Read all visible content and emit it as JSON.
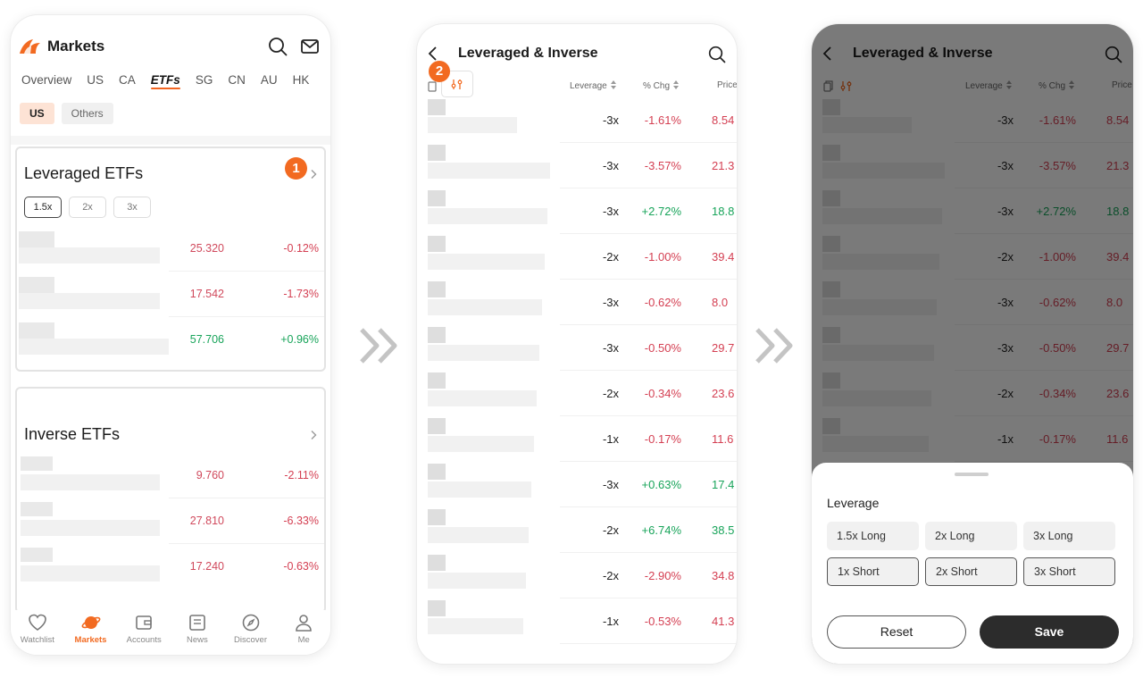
{
  "markets_screen": {
    "title": "Markets",
    "tabs": [
      "Overview",
      "US",
      "CA",
      "ETFs",
      "SG",
      "CN",
      "AU",
      "HK"
    ],
    "active_tab": "ETFs",
    "region_chips": [
      "US",
      "Others"
    ],
    "leveraged_card": {
      "title": "Leveraged ETFs",
      "step_badge": "1",
      "leverage_chips": [
        "1.5x",
        "2x",
        "3x"
      ],
      "rows": [
        {
          "price": "25.320",
          "change": "-0.12%",
          "dir": "down"
        },
        {
          "price": "17.542",
          "change": "-1.73%",
          "dir": "down"
        },
        {
          "price": "57.706",
          "change": "+0.96%",
          "dir": "up"
        }
      ]
    },
    "inverse_card": {
      "title": "Inverse ETFs",
      "rows": [
        {
          "price": "9.760",
          "change": "-2.11%",
          "dir": "down"
        },
        {
          "price": "27.810",
          "change": "-6.33%",
          "dir": "down"
        },
        {
          "price": "17.240",
          "change": "-0.63%",
          "dir": "down"
        }
      ]
    },
    "bottom_nav": [
      "Watchlist",
      "Markets",
      "Accounts",
      "News",
      "Discover",
      "Me"
    ]
  },
  "list_screen": {
    "title": "Leveraged & Inverse",
    "step_badge": "2",
    "columns": {
      "leverage": "Leverage",
      "pct_chg": "% Chg",
      "price": "Price"
    },
    "rows": [
      {
        "lev": "-3x",
        "pct": "-1.61%",
        "price": "8.54",
        "dir": "down"
      },
      {
        "lev": "-3x",
        "pct": "-3.57%",
        "price": "21.3",
        "dir": "down"
      },
      {
        "lev": "-3x",
        "pct": "+2.72%",
        "price": "18.8",
        "dir": "up"
      },
      {
        "lev": "-2x",
        "pct": "-1.00%",
        "price": "39.4",
        "dir": "down"
      },
      {
        "lev": "-3x",
        "pct": "-0.62%",
        "price": "8.0",
        "dir": "down"
      },
      {
        "lev": "-3x",
        "pct": "-0.50%",
        "price": "29.7",
        "dir": "down"
      },
      {
        "lev": "-2x",
        "pct": "-0.34%",
        "price": "23.6",
        "dir": "down"
      },
      {
        "lev": "-1x",
        "pct": "-0.17%",
        "price": "11.6",
        "dir": "down"
      },
      {
        "lev": "-3x",
        "pct": "+0.63%",
        "price": "17.4",
        "dir": "up"
      },
      {
        "lev": "-2x",
        "pct": "+6.74%",
        "price": "38.5",
        "dir": "up"
      },
      {
        "lev": "-2x",
        "pct": "-2.90%",
        "price": "34.8",
        "dir": "down"
      },
      {
        "lev": "-1x",
        "pct": "-0.53%",
        "price": "41.3",
        "dir": "down"
      }
    ]
  },
  "filter_sheet": {
    "title": "Leverage",
    "options": [
      "1.5x Long",
      "2x Long",
      "3x Long",
      "1x Short",
      "2x Short",
      "3x Short"
    ],
    "reset_label": "Reset",
    "save_label": "Save"
  },
  "colors": {
    "accent": "#f26a21",
    "down": "#d43f52",
    "up": "#18a45a",
    "save_button": "#2c2c2c"
  },
  "icons": [
    "search-icon",
    "mail-icon",
    "chevron-right-icon",
    "back-icon",
    "filter-icon",
    "sort-icon",
    "double-chevron-right-icon"
  ]
}
